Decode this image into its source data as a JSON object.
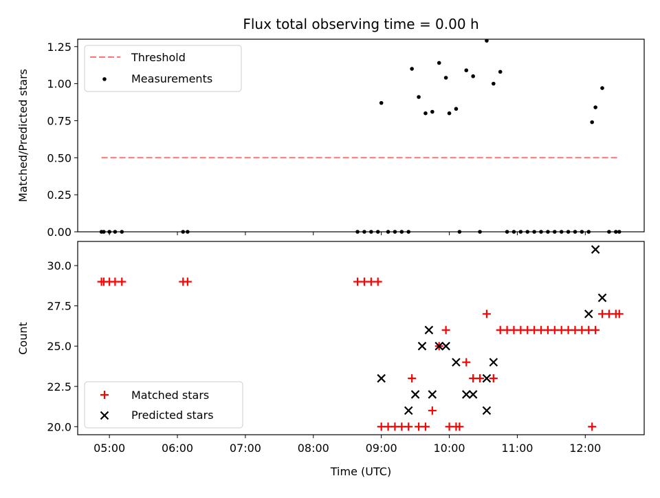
{
  "figure": {
    "title": "Flux total observing time = 0.00 h",
    "xlabel": "Time (UTC)"
  },
  "chart_data": [
    {
      "type": "scatter",
      "panel": "top",
      "ylabel": "Matched/Predicted stars",
      "xlim": [
        "04:32",
        "12:52"
      ],
      "ylim": [
        0,
        1.3
      ],
      "yticks": [
        0.0,
        0.25,
        0.5,
        0.75,
        1.0,
        1.25
      ],
      "ytick_labels": [
        "0.00",
        "0.25",
        "0.50",
        "0.75",
        "1.00",
        "1.25"
      ],
      "legend": {
        "placement": "upper-left",
        "entries": [
          "Threshold",
          "Measurements"
        ]
      },
      "threshold": {
        "name": "Threshold",
        "x": [
          "04:53",
          "12:30"
        ],
        "y": 0.5,
        "color": "#ff7373",
        "style": "dashed"
      },
      "series": [
        {
          "name": "Measurements",
          "marker": "dot",
          "color": "#000000",
          "x": [
            "04:53",
            "04:55",
            "05:00",
            "05:05",
            "05:11",
            "06:05",
            "06:09",
            "08:39",
            "08:45",
            "08:51",
            "08:57",
            "09:00",
            "09:06",
            "09:12",
            "09:18",
            "09:24",
            "09:27",
            "09:33",
            "09:39",
            "09:45",
            "09:51",
            "09:57",
            "10:00",
            "10:06",
            "10:09",
            "10:15",
            "10:21",
            "10:27",
            "10:33",
            "10:39",
            "10:45",
            "10:51",
            "10:57",
            "11:03",
            "11:09",
            "11:15",
            "11:21",
            "11:27",
            "11:33",
            "11:39",
            "11:45",
            "11:51",
            "11:57",
            "12:03",
            "12:06",
            "12:09",
            "12:15",
            "12:21",
            "12:27",
            "12:30"
          ],
          "y": [
            0,
            0,
            0,
            0,
            0,
            0,
            0,
            0,
            0,
            0,
            0,
            0.87,
            0,
            0,
            0,
            0,
            1.1,
            0.91,
            0.8,
            0.81,
            1.14,
            1.04,
            0.8,
            0.83,
            0,
            1.09,
            1.05,
            0,
            1.29,
            1.0,
            1.08,
            0,
            0,
            0,
            0,
            0,
            0,
            0,
            0,
            0,
            0,
            0,
            0,
            0,
            0.74,
            0.84,
            0.97,
            0,
            0,
            0
          ]
        }
      ]
    },
    {
      "type": "scatter",
      "panel": "bottom",
      "ylabel": "Count",
      "xlim": [
        "04:32",
        "12:52"
      ],
      "ylim": [
        19.5,
        31.5
      ],
      "yticks": [
        20.0,
        22.5,
        25.0,
        27.5,
        30.0
      ],
      "ytick_labels": [
        "20.0",
        "22.5",
        "25.0",
        "27.5",
        "30.0"
      ],
      "xticks": [
        "05:00",
        "06:00",
        "07:00",
        "08:00",
        "09:00",
        "10:00",
        "11:00",
        "12:00"
      ],
      "legend": {
        "placement": "lower-left",
        "entries": [
          "Matched stars",
          "Predicted stars"
        ]
      },
      "series": [
        {
          "name": "Matched stars",
          "marker": "plus",
          "color": "#ff0000",
          "x": [
            "04:53",
            "04:55",
            "05:00",
            "05:05",
            "05:11",
            "06:05",
            "06:09",
            "08:39",
            "08:45",
            "08:51",
            "08:57",
            "09:00",
            "09:06",
            "09:12",
            "09:18",
            "09:24",
            "09:27",
            "09:33",
            "09:39",
            "09:45",
            "09:51",
            "09:57",
            "10:00",
            "10:06",
            "10:09",
            "10:15",
            "10:21",
            "10:27",
            "10:33",
            "10:39",
            "10:45",
            "10:51",
            "10:57",
            "11:03",
            "11:09",
            "11:15",
            "11:21",
            "11:27",
            "11:33",
            "11:39",
            "11:45",
            "11:51",
            "11:57",
            "12:03",
            "12:06",
            "12:09",
            "12:15",
            "12:21",
            "12:27",
            "12:30"
          ],
          "y": [
            29,
            29,
            29,
            29,
            29,
            29,
            29,
            29,
            29,
            29,
            29,
            20,
            20,
            20,
            20,
            20,
            23,
            20,
            20,
            21,
            25,
            26,
            20,
            20,
            20,
            24,
            23,
            23,
            27,
            23,
            26,
            26,
            26,
            26,
            26,
            26,
            26,
            26,
            26,
            26,
            26,
            26,
            26,
            26,
            20,
            26,
            27,
            27,
            27,
            27
          ]
        },
        {
          "name": "Predicted stars",
          "marker": "x",
          "color": "#000000",
          "x": [
            "09:00",
            "09:24",
            "09:30",
            "09:36",
            "09:42",
            "09:45",
            "09:51",
            "09:57",
            "10:06",
            "10:15",
            "10:21",
            "10:33",
            "10:33",
            "10:39",
            "12:03",
            "12:09",
            "12:15"
          ],
          "y": [
            23,
            21,
            22,
            25,
            26,
            22,
            25,
            25,
            24,
            22,
            22,
            21,
            23,
            24,
            27,
            31,
            28
          ]
        }
      ]
    }
  ]
}
